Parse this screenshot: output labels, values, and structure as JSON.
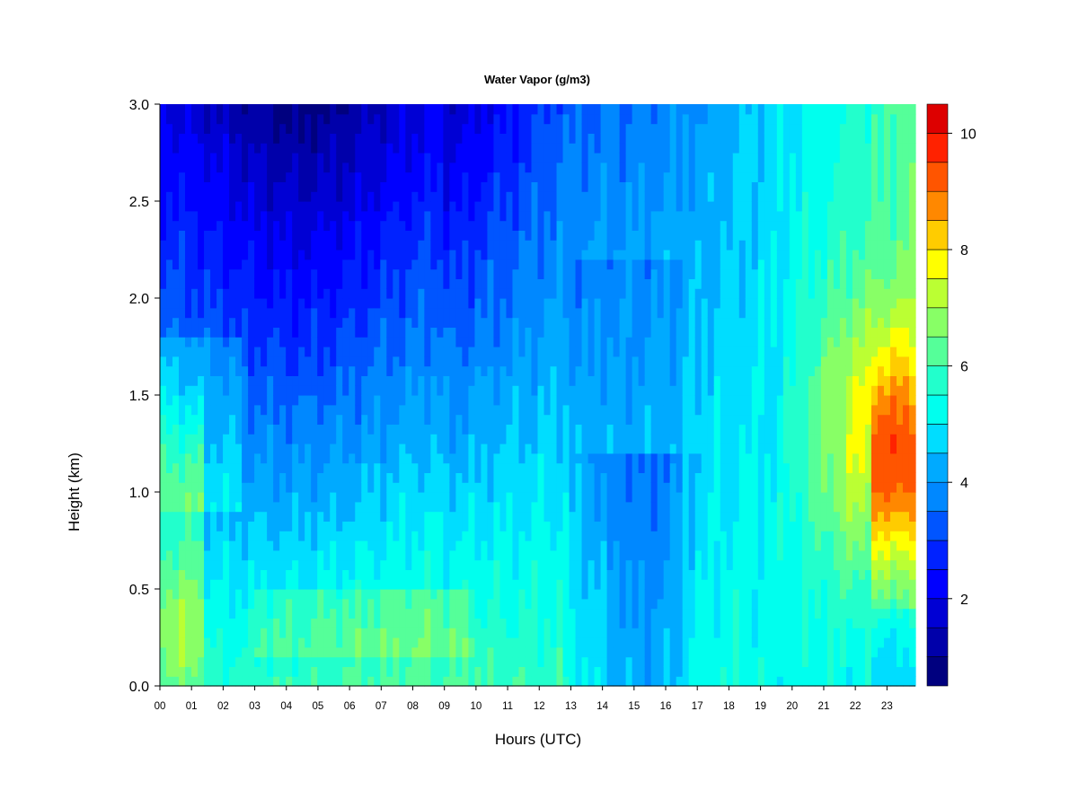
{
  "chart_data": {
    "type": "heatmap",
    "title": "Water Vapor (g/m3)",
    "xlabel": "Hours (UTC)",
    "ylabel": "Height (km)",
    "xlim": [
      0,
      23.9
    ],
    "ylim": [
      0.0,
      3.0
    ],
    "x_tick_labels": [
      "00",
      "01",
      "02",
      "03",
      "04",
      "05",
      "06",
      "07",
      "08",
      "09",
      "10",
      "11",
      "12",
      "13",
      "14",
      "15",
      "16",
      "17",
      "18",
      "19",
      "20",
      "21",
      "22",
      "23"
    ],
    "y_tick_labels": [
      "0.0",
      "0.5",
      "1.0",
      "1.5",
      "2.0",
      "2.5",
      "3.0"
    ],
    "y_ticks": [
      0.0,
      0.5,
      1.0,
      1.5,
      2.0,
      2.5,
      3.0
    ],
    "colorbar": {
      "label_values": [
        2,
        4,
        6,
        8,
        10
      ],
      "labels": [
        "2",
        "4",
        "6",
        "8",
        "10"
      ],
      "range": [
        0.5,
        10.5
      ],
      "levels": [
        0.5,
        1.0,
        1.5,
        2.0,
        2.5,
        3.0,
        3.5,
        4.0,
        4.5,
        5.0,
        5.5,
        6.0,
        6.5,
        7.0,
        7.5,
        8.0,
        8.5,
        9.0,
        9.5,
        10.0,
        10.5
      ],
      "colors": [
        "#00007F",
        "#0000AA",
        "#0000D4",
        "#0000FF",
        "#0022FF",
        "#0055FF",
        "#0088FF",
        "#00AAFF",
        "#00DDFF",
        "#00FFEE",
        "#22FFCC",
        "#55FF99",
        "#88FF66",
        "#BBFF33",
        "#FFFF00",
        "#FFCC00",
        "#FF8800",
        "#FF5500",
        "#FF2200",
        "#DD0000",
        "#990000"
      ]
    },
    "grid": false,
    "description_fields": {
      "x_unit": "hours UTC",
      "y_unit": "km",
      "value_unit": "g/m3"
    }
  }
}
